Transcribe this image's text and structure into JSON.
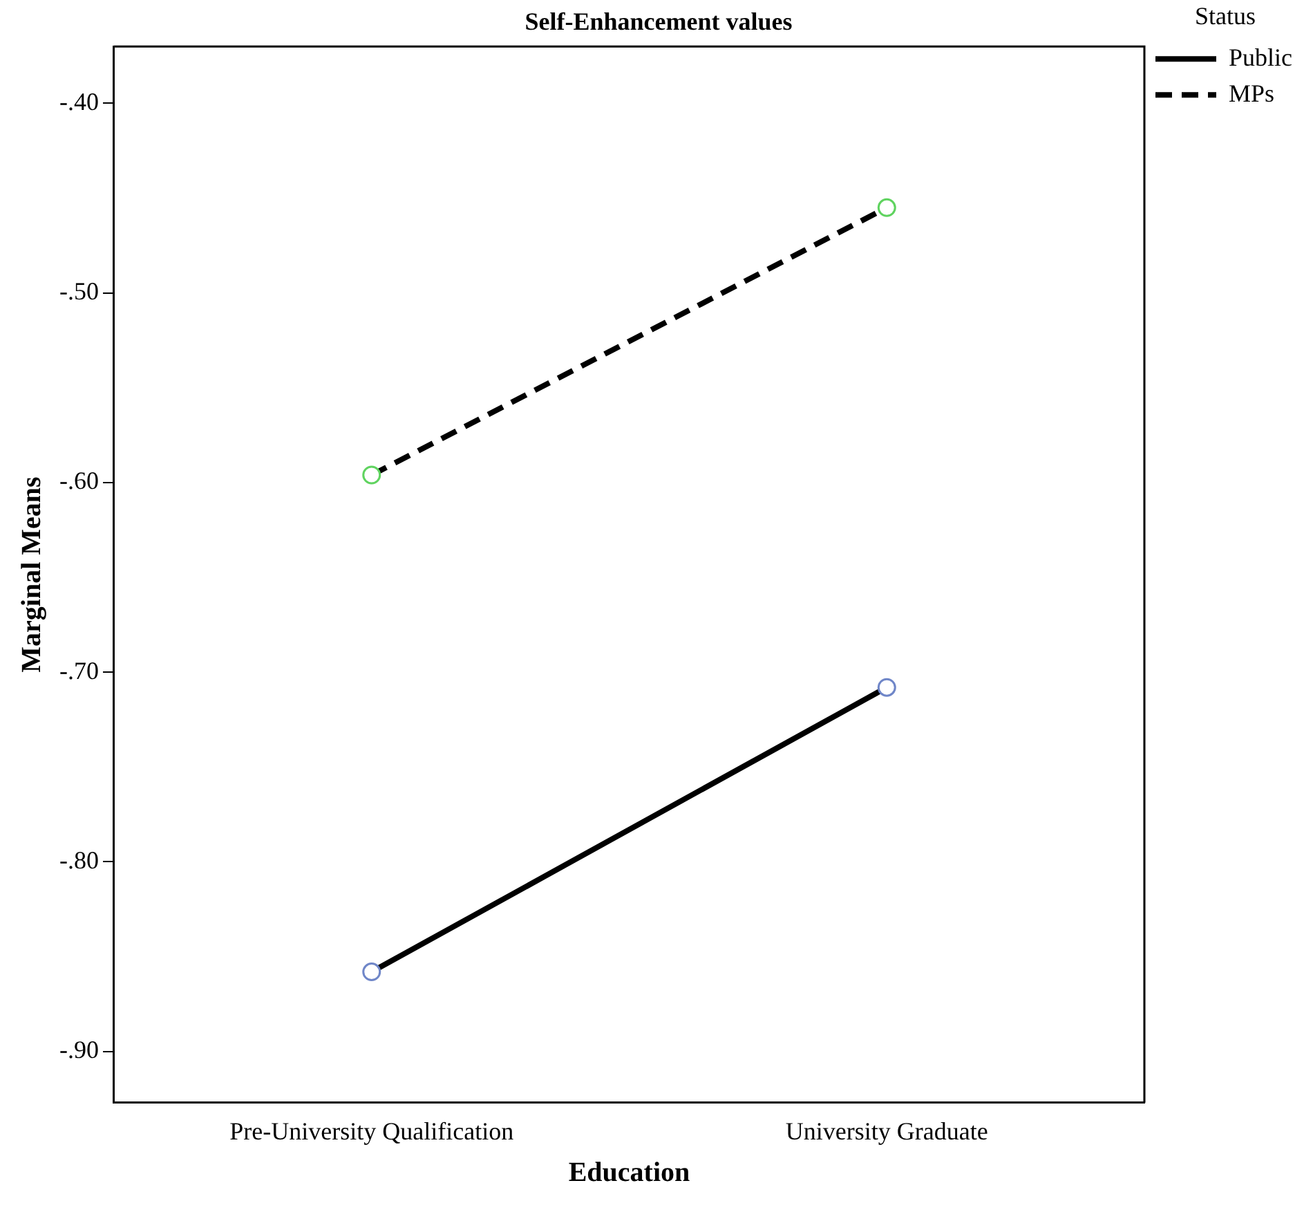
{
  "chart_data": {
    "type": "line",
    "title": "Self-Enhancement values",
    "xlabel": "Education",
    "ylabel": "Marginal Means",
    "legend_title": "Status",
    "legend": "top right",
    "marker": "circle",
    "grid": false,
    "categories": [
      "Pre-University Qualification",
      "University Graduate"
    ],
    "ylim": [
      -0.927,
      -0.37
    ],
    "yticks": [
      {
        "value": -0.4,
        "label": "-.40"
      },
      {
        "value": -0.5,
        "label": "-.50"
      },
      {
        "value": -0.6,
        "label": "-.60"
      },
      {
        "value": -0.7,
        "label": "-.70"
      },
      {
        "value": -0.8,
        "label": "-.80"
      },
      {
        "value": -0.9,
        "label": "-.90"
      }
    ],
    "series": [
      {
        "name": "Public",
        "color": "#000000",
        "colors": [
          "#6f86c8",
          "#6f86c8"
        ],
        "line_style": "solid",
        "values": [
          -0.858,
          -0.708
        ]
      },
      {
        "name": "MPs",
        "color": "#000000",
        "colors": [
          "#5fd35f",
          "#5fd35f"
        ],
        "line_style": "dashed",
        "values": [
          -0.596,
          -0.455
        ]
      }
    ]
  }
}
